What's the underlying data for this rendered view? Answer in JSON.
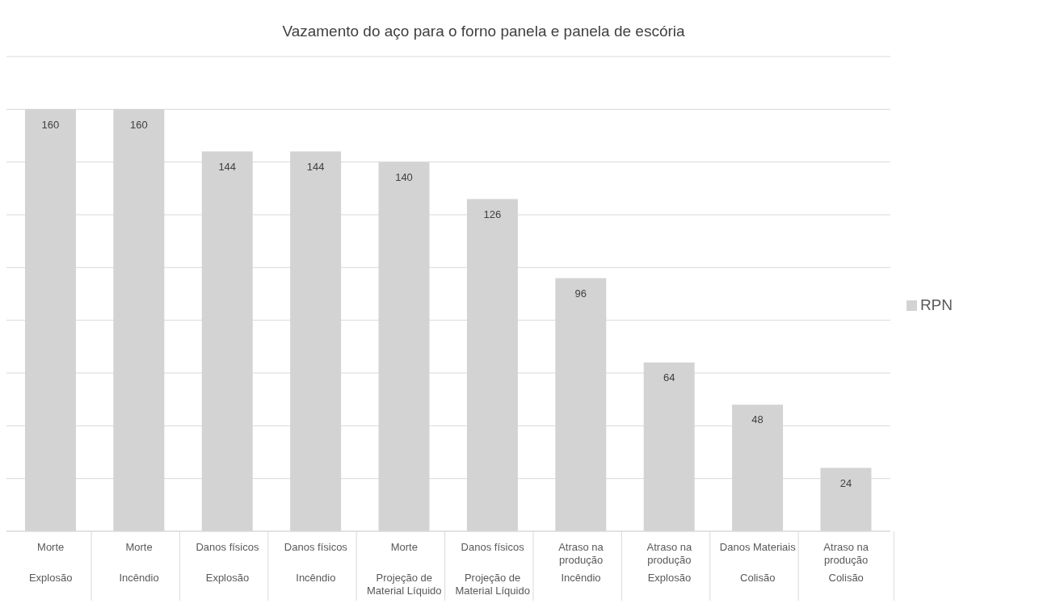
{
  "chart_data": {
    "type": "bar",
    "title": "Vazamento do aço para o forno panela e panela de escória",
    "categories": [
      "Morte\nExplosão",
      "Morte\nIncêndio",
      "Danos físicos\nExplosão",
      "Danos físicos\nIncêndio",
      "Morte\nProjeção de Material Líquido",
      "Danos físicos\nProjeção de Material Líquido",
      "Atraso na produção\nIncêndio",
      "Atraso na produção\nExplosão",
      "Danos Materiais\nColisão",
      "Atraso na produção\nColisão"
    ],
    "series": [
      {
        "name": "RPN",
        "color": "#d3d3d3",
        "values": [
          160,
          160,
          144,
          144,
          140,
          126,
          96,
          64,
          48,
          24
        ]
      }
    ],
    "ylim": [
      0,
      180
    ],
    "yticks": [
      {
        "value": 0,
        "label": null
      },
      {
        "value": 20,
        "label": null
      },
      {
        "value": 40,
        "label": null
      },
      {
        "value": 60,
        "label": null
      },
      {
        "value": 80,
        "label": null
      },
      {
        "value": 100,
        "label": null
      },
      {
        "value": 120,
        "label": null
      },
      {
        "value": 140,
        "label": null
      },
      {
        "value": 160,
        "label": null
      },
      {
        "value": 180,
        "label": null
      }
    ],
    "grid": "y",
    "tick_labels": "x",
    "data_labels": true,
    "legend": "right"
  }
}
